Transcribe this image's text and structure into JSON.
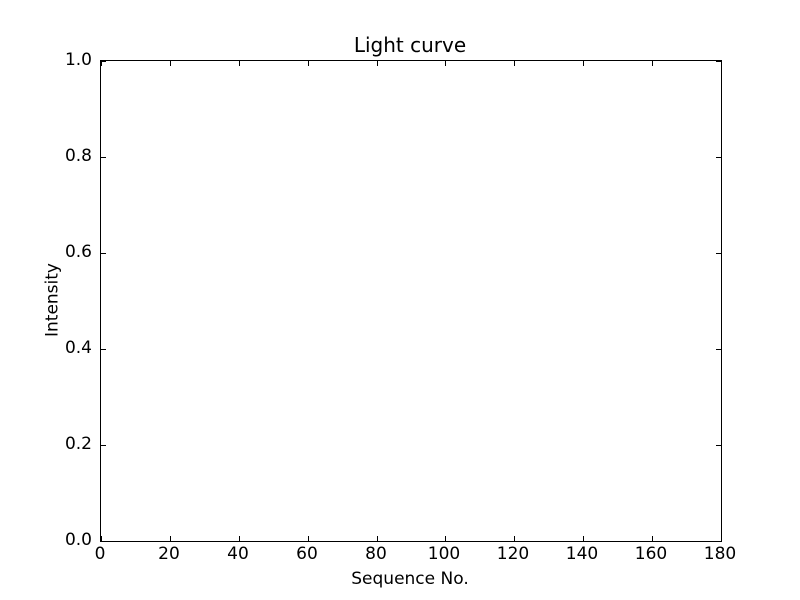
{
  "chart_data": {
    "type": "line",
    "title": "Light curve",
    "xlabel": "Sequence No.",
    "ylabel": "Intensity",
    "xlim": [
      0,
      180
    ],
    "ylim": [
      0.0,
      1.0
    ],
    "xticks": [
      0,
      20,
      40,
      60,
      80,
      100,
      120,
      140,
      160,
      180
    ],
    "xtick_labels": [
      "0",
      "20",
      "40",
      "60",
      "80",
      "100",
      "120",
      "140",
      "160",
      "180"
    ],
    "yticks": [
      0.0,
      0.2,
      0.4,
      0.6,
      0.8,
      1.0
    ],
    "ytick_labels": [
      "0.0",
      "0.2",
      "0.4",
      "0.6",
      "0.8",
      "1.0"
    ],
    "series": [],
    "grid": false,
    "legend": null,
    "tick_direction": "in",
    "ticks_on_all_sides": true,
    "frame_on": true
  },
  "colors": {
    "background": "#ffffff",
    "frame": "#000000",
    "text": "#000000"
  }
}
